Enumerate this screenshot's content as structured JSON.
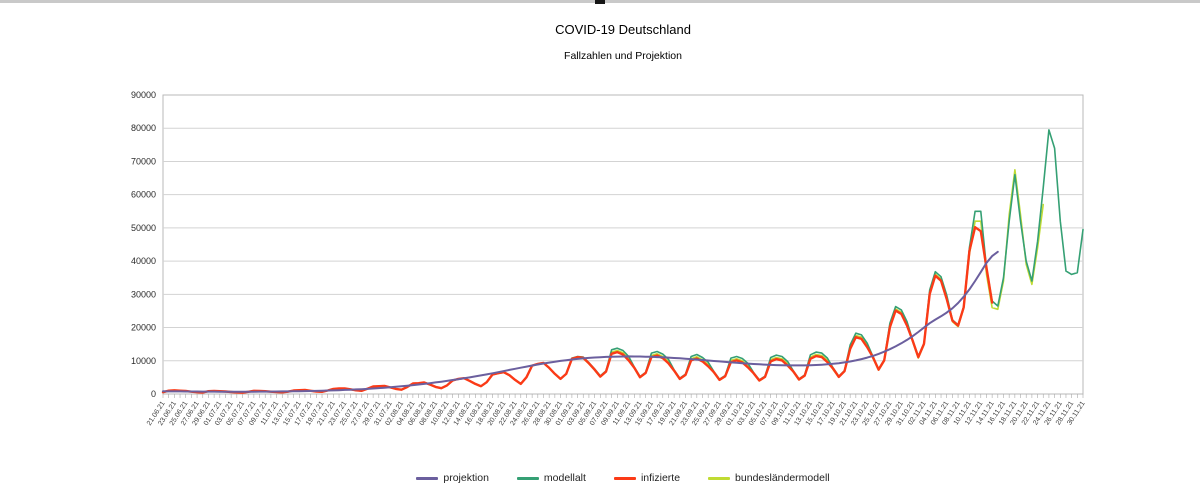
{
  "window": {
    "top_bar_color": "#c9c9c9",
    "top_bar_notch_color": "#161616"
  },
  "chart_data": {
    "type": "line",
    "title": "COVID-19 Deutschland",
    "subtitle": "Fallzahlen und Projektion",
    "grid": true,
    "legend_position": "bottom",
    "ylim": [
      0,
      90000
    ],
    "y_tick_step": 10000,
    "n_days": 163,
    "x_days_per_tick": 2,
    "x_tick_labels": [
      "21.06.21",
      "23.06.21",
      "25.06.21",
      "27.06.21",
      "29.06.21",
      "01.07.21",
      "03.07.21",
      "05.07.21",
      "07.07.21",
      "09.07.21",
      "11.07.21",
      "13.07.21",
      "15.07.21",
      "17.07.21",
      "19.07.21",
      "21.07.21",
      "23.07.21",
      "25.07.21",
      "27.07.21",
      "29.07.21",
      "31.07.21",
      "02.08.21",
      "04.08.21",
      "06.08.21",
      "08.08.21",
      "10.08.21",
      "12.08.21",
      "14.08.21",
      "16.08.21",
      "18.08.21",
      "20.08.21",
      "22.08.21",
      "24.08.21",
      "26.08.21",
      "28.08.21",
      "30.08.21",
      "01.09.21",
      "03.09.21",
      "05.09.21",
      "07.09.21",
      "09.09.21",
      "11.09.21",
      "13.09.21",
      "15.09.21",
      "17.09.21",
      "19.09.21",
      "21.09.21",
      "23.09.21",
      "25.09.21",
      "27.09.21",
      "29.09.21",
      "01.10.21",
      "03.10.21",
      "05.10.21",
      "07.10.21",
      "09.10.21",
      "11.10.21",
      "13.10.21",
      "15.10.21",
      "17.10.21",
      "19.10.21",
      "21.10.21",
      "23.10.21",
      "25.10.21",
      "27.10.21",
      "29.10.21",
      "31.10.21",
      "02.11.21",
      "04.11.21",
      "06.11.21",
      "08.11.21",
      "10.11.21",
      "12.11.21",
      "14.11.21",
      "16.11.21",
      "18.11.21",
      "20.11.21",
      "22.11.21",
      "24.11.21",
      "26.11.21",
      "28.11.21",
      "30.11.21"
    ],
    "series": [
      {
        "name": "projektion",
        "color": "#6b5f9e",
        "width": 2,
        "values": [
          800,
          790,
          780,
          770,
          760,
          750,
          740,
          730,
          720,
          710,
          700,
          695,
          690,
          690,
          690,
          695,
          700,
          710,
          720,
          735,
          750,
          770,
          790,
          815,
          840,
          870,
          905,
          945,
          990,
          1040,
          1095,
          1155,
          1220,
          1290,
          1370,
          1455,
          1550,
          1655,
          1770,
          1895,
          2030,
          2175,
          2330,
          2495,
          2670,
          2855,
          3050,
          3260,
          3480,
          3710,
          3950,
          4200,
          4460,
          4730,
          5010,
          5300,
          5600,
          5910,
          6230,
          6560,
          6900,
          7240,
          7580,
          7920,
          8250,
          8570,
          8880,
          9180,
          9460,
          9720,
          9960,
          10180,
          10380,
          10560,
          10720,
          10860,
          10980,
          11080,
          11160,
          11220,
          11270,
          11300,
          11310,
          11300,
          11280,
          11240,
          11190,
          11120,
          11040,
          10950,
          10850,
          10740,
          10620,
          10490,
          10360,
          10220,
          10080,
          9940,
          9800,
          9660,
          9520,
          9390,
          9260,
          9140,
          9030,
          8930,
          8840,
          8760,
          8700,
          8650,
          8620,
          8600,
          8600,
          8620,
          8660,
          8720,
          8810,
          8930,
          9080,
          9270,
          9500,
          9780,
          10110,
          10500,
          10950,
          11470,
          12060,
          12730,
          13480,
          14320,
          15250,
          16280,
          17410,
          18650,
          20000,
          21300,
          22400,
          23400,
          24500,
          25800,
          27400,
          29300,
          31500,
          34000,
          36700,
          39500,
          41500,
          42800
        ]
      },
      {
        "name": "modellalt",
        "color": "#35a074",
        "width": 1.6,
        "values": [
          500,
          950,
          1050,
          980,
          880,
          680,
          530,
          430,
          820,
          880,
          820,
          730,
          580,
          460,
          390,
          630,
          930,
          880,
          830,
          680,
          540,
          480,
          690,
          1030,
          1130,
          1180,
          930,
          730,
          630,
          1030,
          1530,
          1630,
          1680,
          1380,
          1080,
          930,
          1580,
          2230,
          2330,
          2430,
          1980,
          1530,
          1280,
          2080,
          3130,
          3230,
          3430,
          2830,
          2130,
          1730,
          2580,
          4030,
          4530,
          4730,
          3930,
          3030,
          2330,
          3530,
          5830,
          6230,
          6530,
          5630,
          4230,
          3030,
          5030,
          8530,
          9030,
          9330,
          7830,
          6030,
          4530,
          6030,
          10800,
          11300,
          11100,
          9450,
          7550,
          5450,
          6950,
          13300,
          13800,
          13100,
          11300,
          8050,
          5250,
          6550,
          12300,
          12800,
          12000,
          10450,
          7250,
          4750,
          5950,
          11300,
          11900,
          11000,
          9550,
          6750,
          4450,
          5550,
          10800,
          11300,
          10700,
          9250,
          6450,
          4250,
          5350,
          11000,
          11700,
          11300,
          9750,
          6950,
          4550,
          5750,
          11800,
          12600,
          12300,
          10800,
          7850,
          5350,
          7050,
          14800,
          18300,
          17800,
          15300,
          11300,
          7550,
          10300,
          21300,
          26300,
          25300,
          21800,
          16300,
          11300,
          15300,
          31300,
          36800,
          35300,
          29800,
          22300,
          20800,
          26300,
          44000,
          55000,
          55000,
          38000,
          28000,
          26500,
          35000,
          52000,
          66000,
          52000,
          40000,
          34000,
          46000,
          62000,
          79500,
          74000,
          52000,
          37000,
          36000,
          36500,
          49500
        ]
      },
      {
        "name": "infizierte",
        "color": "#fb3a17",
        "width": 2.4,
        "values": [
          550,
          1000,
          1100,
          1000,
          900,
          700,
          550,
          450,
          850,
          900,
          850,
          750,
          600,
          480,
          400,
          650,
          950,
          900,
          850,
          700,
          560,
          500,
          700,
          1050,
          1150,
          1200,
          950,
          750,
          650,
          1050,
          1550,
          1650,
          1700,
          1400,
          1100,
          950,
          1600,
          2250,
          2350,
          2450,
          2000,
          1550,
          1300,
          2100,
          3150,
          3250,
          3450,
          2850,
          2150,
          1750,
          2600,
          4050,
          4550,
          4750,
          3950,
          3050,
          2350,
          3550,
          5850,
          6250,
          6550,
          5650,
          4250,
          3050,
          5050,
          8550,
          9050,
          9350,
          7850,
          6050,
          4550,
          6050,
          10600,
          11100,
          10900,
          9250,
          7350,
          5250,
          6750,
          12100,
          12600,
          11900,
          10100,
          7850,
          5050,
          6350,
          11100,
          11600,
          10800,
          9250,
          7050,
          4550,
          5750,
          10100,
          10700,
          9800,
          8350,
          6550,
          4250,
          5350,
          9600,
          10100,
          9500,
          8050,
          6250,
          4050,
          5150,
          9800,
          10500,
          10100,
          8550,
          6750,
          4350,
          5550,
          10600,
          11400,
          11100,
          9600,
          7650,
          5150,
          6850,
          13600,
          17100,
          16600,
          14100,
          11100,
          7350,
          10100,
          20100,
          25100,
          24100,
          20600,
          16100,
          11100,
          15100,
          30100,
          35600,
          34100,
          28600,
          22100,
          20600,
          26100,
          43000,
          50200,
          49000,
          38000,
          27500
        ]
      },
      {
        "name": "bundesländermodell",
        "color": "#c0db33",
        "width": 1.6,
        "values": [
          520,
          970,
          1070,
          970,
          870,
          670,
          520,
          430,
          820,
          870,
          820,
          720,
          570,
          460,
          380,
          620,
          920,
          870,
          820,
          670,
          530,
          480,
          680,
          1020,
          1120,
          1170,
          920,
          720,
          620,
          1020,
          1520,
          1620,
          1660,
          1360,
          1060,
          920,
          1560,
          2200,
          2300,
          2400,
          1960,
          1510,
          1260,
          2060,
          3100,
          3200,
          3400,
          2800,
          2100,
          1710,
          2560,
          4000,
          4500,
          4700,
          3900,
          3000,
          2310,
          3500,
          5800,
          6200,
          6500,
          5600,
          4200,
          3010,
          5000,
          8500,
          9000,
          9300,
          7800,
          6000,
          4500,
          6000,
          10400,
          10900,
          10700,
          9100,
          7200,
          5150,
          6650,
          12600,
          13100,
          12400,
          10600,
          7700,
          4950,
          6250,
          11600,
          12100,
          11300,
          9750,
          6950,
          4450,
          5650,
          10600,
          11200,
          10300,
          8850,
          6350,
          4150,
          5250,
          10100,
          10600,
          10000,
          8550,
          6150,
          3950,
          5050,
          10300,
          11000,
          10600,
          9050,
          6550,
          4250,
          5450,
          11100,
          11900,
          11600,
          10100,
          7350,
          5050,
          6750,
          14100,
          17600,
          17100,
          14600,
          10800,
          7150,
          9900,
          20600,
          25600,
          24600,
          21100,
          15800,
          10800,
          14800,
          30600,
          36100,
          34600,
          29100,
          21800,
          20300,
          25800,
          42000,
          52000,
          52000,
          36000,
          26000,
          25500,
          34000,
          54000,
          67500,
          54000,
          39000,
          33000,
          44000,
          57000
        ]
      }
    ]
  }
}
